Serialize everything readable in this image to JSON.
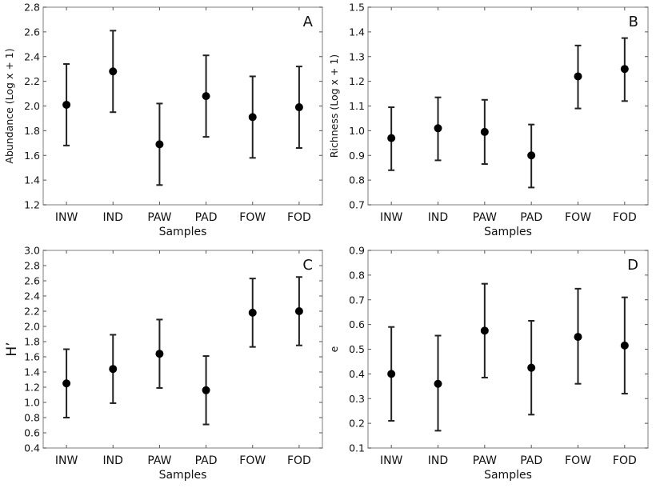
{
  "chart_data": [
    {
      "type": "scatter",
      "panel": "A",
      "xlabel": "Samples",
      "ylabel": "Abundance (Log x + 1)",
      "categories": [
        "INW",
        "IND",
        "PAW",
        "PAD",
        "FOW",
        "FOD"
      ],
      "ylim": [
        1.2,
        2.8
      ],
      "yticks": [
        "1.2",
        "1.4",
        "1.6",
        "1.8",
        "2.0",
        "2.2",
        "2.4",
        "2.6",
        "2.8"
      ],
      "values": [
        2.01,
        2.28,
        1.69,
        2.08,
        1.91,
        1.99
      ],
      "lower": [
        1.68,
        1.95,
        1.36,
        1.75,
        1.58,
        1.66
      ],
      "upper": [
        2.34,
        2.61,
        2.02,
        2.41,
        2.24,
        2.32
      ],
      "grid": false
    },
    {
      "type": "scatter",
      "panel": "B",
      "xlabel": "Samples",
      "ylabel": "Richness (Log x + 1)",
      "categories": [
        "INW",
        "IND",
        "PAW",
        "PAD",
        "FOW",
        "FOD"
      ],
      "ylim": [
        0.7,
        1.5
      ],
      "yticks": [
        "0.7",
        "0.8",
        "0.9",
        "1.0",
        "1.1",
        "1.2",
        "1.3",
        "1.4",
        "1.5"
      ],
      "values": [
        0.97,
        1.01,
        0.995,
        0.9,
        1.22,
        1.25
      ],
      "lower": [
        0.84,
        0.88,
        0.865,
        0.77,
        1.09,
        1.12
      ],
      "upper": [
        1.095,
        1.135,
        1.125,
        1.025,
        1.345,
        1.375
      ],
      "grid": false
    },
    {
      "type": "scatter",
      "panel": "C",
      "xlabel": "Samples",
      "ylabel": "H’",
      "categories": [
        "INW",
        "IND",
        "PAW",
        "PAD",
        "FOW",
        "FOD"
      ],
      "ylim": [
        0.4,
        3.0
      ],
      "yticks": [
        "0.4",
        "0.6",
        "0.8",
        "1.0",
        "1.2",
        "1.4",
        "1.6",
        "1.8",
        "2.0",
        "2.2",
        "2.4",
        "2.6",
        "2.8",
        "3.0"
      ],
      "values": [
        1.25,
        1.44,
        1.64,
        1.16,
        2.18,
        2.2
      ],
      "lower": [
        0.8,
        0.99,
        1.19,
        0.71,
        1.73,
        1.75
      ],
      "upper": [
        1.7,
        1.89,
        2.09,
        1.61,
        2.63,
        2.65
      ],
      "grid": false
    },
    {
      "type": "scatter",
      "panel": "D",
      "xlabel": "Samples",
      "ylabel": "e",
      "categories": [
        "INW",
        "IND",
        "PAW",
        "PAD",
        "FOW",
        "FOD"
      ],
      "ylim": [
        0.1,
        0.9
      ],
      "yticks": [
        "0.1",
        "0.2",
        "0.3",
        "0.4",
        "0.5",
        "0.6",
        "0.7",
        "0.8",
        "0.9"
      ],
      "values": [
        0.4,
        0.36,
        0.575,
        0.425,
        0.55,
        0.515
      ],
      "lower": [
        0.21,
        0.17,
        0.385,
        0.235,
        0.36,
        0.32
      ],
      "upper": [
        0.59,
        0.555,
        0.765,
        0.615,
        0.745,
        0.71
      ],
      "grid": false
    }
  ],
  "colors": {
    "marker": "#000000",
    "errorbar": "#222222",
    "frame": "#9a9a9a"
  }
}
